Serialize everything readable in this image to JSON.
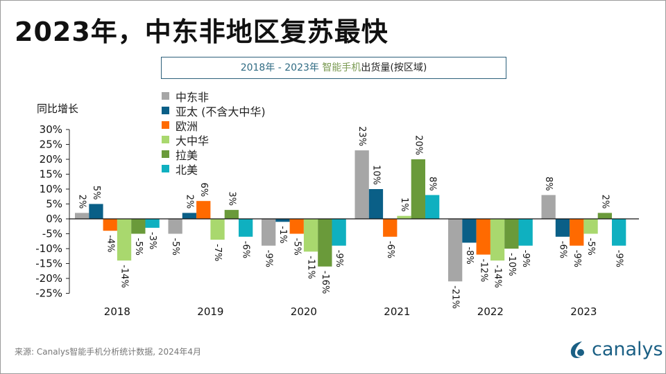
{
  "title": "2023年，中东非地区复苏最快",
  "subtitle": {
    "part1": "2018年 - 2023年 ",
    "part2": "智能手机",
    "part3": "出货量(按区域)"
  },
  "source": "来源: Canalys智能手机分析统计数据, 2024年4月",
  "logo_text": "canalys",
  "chart_data": {
    "type": "bar",
    "ylabel": "同比增长",
    "ylim": [
      -25,
      30
    ],
    "yticks": [
      "30%",
      "25%",
      "20%",
      "15%",
      "10%",
      "5%",
      "0%",
      "-5%",
      "-10%",
      "-15%",
      "-20%",
      "-25%"
    ],
    "legend_position": "top-left",
    "categories": [
      "2018",
      "2019",
      "2020",
      "2021",
      "2022",
      "2023"
    ],
    "series": [
      {
        "name": "中东非",
        "color": "#a6a6a6",
        "values": [
          2,
          -5,
          -9,
          23,
          -21,
          8
        ]
      },
      {
        "name": "亚太 (不含大中华)",
        "color": "#0a5f87",
        "values": [
          5,
          2,
          -1,
          10,
          -8,
          -6
        ]
      },
      {
        "name": "欧洲",
        "color": "#ff6a00",
        "values": [
          -4,
          6,
          -5,
          -6,
          -12,
          -9
        ]
      },
      {
        "name": "大中华",
        "color": "#a9d86e",
        "values": [
          -14,
          -7,
          -11,
          1,
          -14,
          -5
        ]
      },
      {
        "name": "拉美",
        "color": "#6a9a3a",
        "values": [
          -5,
          3,
          -16,
          20,
          -10,
          2
        ]
      },
      {
        "name": "北美",
        "color": "#0fb0c0",
        "values": [
          -3,
          -6,
          -9,
          8,
          -9,
          -9
        ]
      }
    ]
  }
}
